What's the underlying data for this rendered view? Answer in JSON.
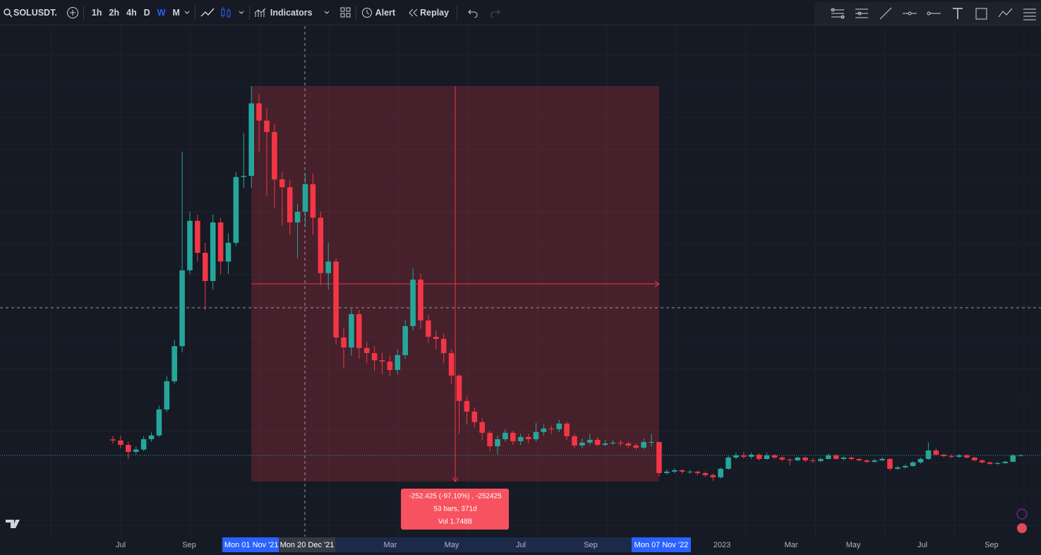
{
  "toolbar": {
    "symbol": "SOLUSDT.",
    "intervals": [
      "1h",
      "2h",
      "4h",
      "D",
      "W",
      "M"
    ],
    "indicators": "Indicators",
    "alert": "Alert",
    "replay": "Replay"
  },
  "chart_data": {
    "type": "candlestick",
    "open": [
      34.5,
      33.8,
      31,
      26.5,
      28,
      34.6,
      37,
      53.6,
      71.6,
      94,
      142.4,
      174,
      153.6,
      135.6,
      173,
      148,
      160,
      202,
      202.7,
      249,
      238,
      230.7,
      200.5,
      195.5,
      173,
      179.8,
      197.4,
      176,
      140.6,
      148,
      99.5,
      93.2,
      114.4,
      92.8,
      89.6,
      85,
      84.2,
      78.8,
      88.3,
      106.8,
      136.5,
      110.4,
      100,
      98.6,
      89.6,
      75.2,
      59,
      52.2,
      45.5,
      38.7,
      30.1,
      34.6,
      38.7,
      33.3,
      36,
      34.6,
      39.2,
      41.4,
      41,
      44.6,
      36.5,
      30.6,
      32.4,
      34.2,
      31,
      31.9,
      32.4,
      31.9,
      30.6,
      29.2,
      32.8,
      32.8,
      13,
      13.9,
      14.8,
      13.9,
      13.9,
      13,
      11.7,
      10.3,
      15.7,
      22.9,
      24.3,
      23.4,
      24.7,
      22,
      24.3,
      22.9,
      21.6,
      21.1,
      22.9,
      21.1,
      20.7,
      22,
      24.3,
      22,
      22.9,
      22,
      21.1,
      20.2,
      21.1,
      22,
      15.7,
      16.6,
      17.5,
      19.8,
      22,
      27.4,
      24.7,
      23.8,
      23.4,
      24.3,
      22.9,
      21.1,
      19.8,
      18.9,
      19.3,
      20.2,
      24.3
    ],
    "high": [
      36.5,
      37,
      33,
      30,
      36.6,
      39,
      56,
      75,
      98,
      218,
      180,
      178,
      160,
      178,
      176,
      166,
      205,
      230,
      260,
      255,
      246,
      236,
      205,
      200,
      185,
      204.6,
      204,
      180,
      160,
      150,
      106,
      118,
      117,
      97,
      94,
      90,
      88,
      92,
      111,
      143.7,
      140,
      114,
      104,
      102,
      92,
      76,
      62,
      55,
      48,
      40,
      37,
      41,
      40,
      38,
      38,
      45,
      44,
      43,
      47,
      46,
      38,
      35,
      38,
      36,
      34,
      34,
      34,
      33,
      32,
      35,
      38,
      33,
      15.5,
      16,
      15.5,
      15,
      14.5,
      14,
      12.5,
      16.5,
      24,
      26,
      26.5,
      26,
      25.5,
      26,
      25,
      24,
      22.5,
      23.5,
      23.5,
      22.5,
      23,
      25.5,
      25,
      23.5,
      23.5,
      22.5,
      21.8,
      22,
      23,
      22.5,
      17.5,
      18.5,
      20.5,
      23,
      32.5,
      28.5,
      25.5,
      25,
      25,
      25,
      23.5,
      21.8,
      20.3,
      20,
      21,
      25,
      25
    ],
    "low": [
      31.8,
      29,
      22,
      25,
      27,
      33,
      36,
      52,
      70,
      90,
      140,
      148,
      117,
      130,
      140,
      140,
      158,
      195,
      195,
      218,
      190,
      182,
      171,
      165,
      150,
      170,
      165,
      133,
      130,
      95,
      80,
      88,
      86,
      83,
      78,
      76,
      75,
      76,
      86,
      104,
      105,
      96,
      92,
      83,
      70,
      38,
      44,
      42,
      34,
      27,
      25,
      33,
      31,
      31,
      32,
      33,
      37,
      38,
      39,
      34,
      29,
      29,
      31,
      30,
      30,
      31,
      30,
      29,
      28,
      28,
      30,
      11,
      12,
      13,
      12.5,
      12.5,
      11.5,
      10.5,
      8,
      9.5,
      15,
      22,
      22,
      22,
      21,
      21.5,
      22,
      20.5,
      18,
      20.5,
      20,
      19.5,
      20,
      21.5,
      21.5,
      21,
      21,
      20.5,
      19.5,
      19.8,
      20.5,
      14.5,
      15,
      16,
      17,
      19,
      21.5,
      24,
      23,
      22.5,
      22.8,
      22.3,
      20.5,
      19.2,
      18.3,
      18.4,
      19,
      20,
      23.8
    ],
    "close": [
      33.8,
      31,
      26.5,
      28,
      34.6,
      37,
      53.6,
      71.6,
      94,
      142.4,
      174,
      153.6,
      135.6,
      173,
      148,
      160,
      202,
      202.7,
      249,
      238,
      230.7,
      200.5,
      195.5,
      173,
      179.8,
      197.4,
      176,
      140.6,
      148,
      99.5,
      93.2,
      114.4,
      92.8,
      89.6,
      85,
      84.2,
      78.8,
      88.3,
      106.8,
      136.5,
      110.4,
      100,
      98.6,
      89.6,
      75.2,
      59,
      52.2,
      45.5,
      38.7,
      30.1,
      34.6,
      38.7,
      33.3,
      36,
      34.6,
      39.2,
      41.4,
      41,
      44.6,
      36.5,
      30.6,
      32.4,
      34.2,
      31,
      31.9,
      32.4,
      31.9,
      30.6,
      29.2,
      32.8,
      32.8,
      13,
      13.9,
      14.8,
      13.9,
      13.9,
      13,
      11.7,
      10.3,
      15.7,
      22.9,
      24.3,
      23.4,
      24.7,
      22,
      24.3,
      22.9,
      21.6,
      21.1,
      22.9,
      21.1,
      20.7,
      22,
      24.3,
      22,
      22.9,
      22,
      21.1,
      20.2,
      21.1,
      22,
      15.7,
      16.6,
      17.5,
      19.8,
      22,
      27.4,
      24.7,
      23.8,
      23.4,
      24.3,
      22.9,
      21.1,
      19.8,
      18.9,
      19.3,
      20.2,
      24.3,
      24.3
    ],
    "up_color": "#26a69a",
    "down_color": "#f23645",
    "ylim": [
      -27.6,
      298.3
    ],
    "current_price": 24.3,
    "crosshair_price": 118.5,
    "x_labels": [
      "Jul",
      "Sep",
      "Mar",
      "May",
      "Jul",
      "Sep",
      "2023",
      "Mar",
      "May",
      "Jul",
      "Sep"
    ],
    "measure": {
      "from_price": 260,
      "to_price": 7.575,
      "start_label": "Mon 01 Nov '21",
      "end_label": "Mon 07 Nov '22",
      "crosshair_label": "Mon 20 Dec '21",
      "lines": [
        "-252.425 (-97.10%) , -252425",
        "53 bars, 371d",
        "Vol 1.748B"
      ]
    }
  }
}
